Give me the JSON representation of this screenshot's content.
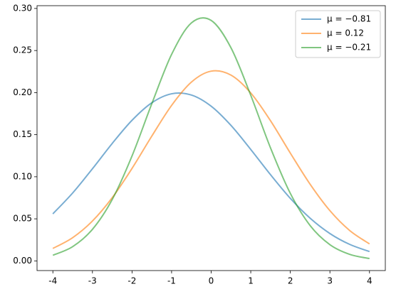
{
  "chart_data": {
    "type": "line",
    "x": [
      -4,
      -3.5,
      -3,
      -2.5,
      -2,
      -1.5,
      -1,
      -0.5,
      0,
      0.5,
      1,
      1.5,
      2,
      2.5,
      3,
      3.5,
      4
    ],
    "series": [
      {
        "name": "μ = −0.81",
        "color": "#1f77b4",
        "values": [
          0.0559,
          0.0807,
          0.1095,
          0.1396,
          0.1671,
          0.1879,
          0.1986,
          0.1971,
          0.1838,
          0.161,
          0.1324,
          0.1024,
          0.0743,
          0.0507,
          0.0325,
          0.0196,
          0.0111
        ]
      },
      {
        "name": "μ = 0.12",
        "color": "#ff7f0e",
        "values": [
          0.0148,
          0.0276,
          0.0474,
          0.0751,
          0.1099,
          0.1483,
          0.1848,
          0.2125,
          0.2255,
          0.2208,
          0.1996,
          0.1665,
          0.1281,
          0.0911,
          0.0597,
          0.0361,
          0.0202
        ]
      },
      {
        "name": "μ = −0.21",
        "color": "#2ca02c",
        "values": [
          0.0067,
          0.0169,
          0.0375,
          0.073,
          0.1247,
          0.1868,
          0.2454,
          0.2828,
          0.2858,
          0.2533,
          0.1968,
          0.1342,
          0.0802,
          0.042,
          0.0193,
          0.0078,
          0.0028
        ]
      }
    ],
    "xlim": [
      -4.4,
      4.4
    ],
    "xticks": [
      -4,
      -3,
      -2,
      -1,
      0,
      1,
      2,
      3,
      4
    ],
    "ylim": [
      -0.0115,
      0.3033
    ],
    "yticks": [
      {
        "value": 0,
        "label": "0.00"
      },
      {
        "value": 0.05,
        "label": "0.05"
      },
      {
        "value": 0.1,
        "label": "0.10"
      },
      {
        "value": 0.15,
        "label": "0.15"
      },
      {
        "value": 0.2,
        "label": "0.20"
      },
      {
        "value": 0.25,
        "label": "0.25"
      },
      {
        "value": 0.3,
        "label": "0.30"
      }
    ],
    "legend": "upper right",
    "opacity": 0.6
  }
}
